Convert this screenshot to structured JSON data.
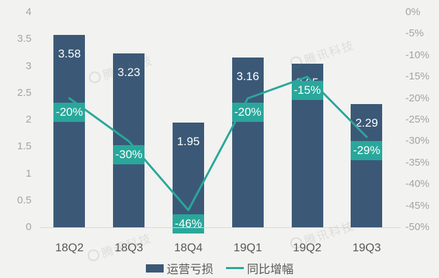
{
  "chart_data": {
    "type": "bar",
    "subtype": "bar-line-combo",
    "title": "",
    "categories": [
      "18Q2",
      "18Q3",
      "18Q4",
      "19Q1",
      "19Q2",
      "19Q3"
    ],
    "series": [
      {
        "name": "运营亏损",
        "type": "bar",
        "axis": "left",
        "values": [
          3.58,
          3.23,
          1.95,
          3.16,
          3.05,
          2.29
        ],
        "labels": [
          "3.58",
          "3.23",
          "1.95",
          "3.16",
          "3.05",
          "2.29"
        ],
        "color": "#3b5977"
      },
      {
        "name": "同比增幅",
        "type": "line",
        "axis": "right",
        "values": [
          -20,
          -30,
          -46,
          -20,
          -15,
          -29
        ],
        "labels": [
          "-20%",
          "-30%",
          "-46%",
          "-20%",
          "-15%",
          "-29%"
        ],
        "color": "#29a79b"
      }
    ],
    "left_axis": {
      "min": 0,
      "max": 4,
      "step": 0.5,
      "ticks": [
        "0",
        "0.5",
        "1",
        "1.5",
        "2",
        "2.5",
        "3",
        "3.5",
        "4"
      ]
    },
    "right_axis": {
      "min": -50,
      "max": 0,
      "step": -5,
      "ticks": [
        "0%",
        "-5%",
        "-10%",
        "-15%",
        "-20%",
        "-25%",
        "-30%",
        "-35%",
        "-40%",
        "-45%",
        "-50%"
      ]
    },
    "legend": [
      "运营亏损",
      "同比增幅"
    ],
    "grid": "off",
    "legend_position": "bottom-center"
  },
  "watermark": {
    "text": "腾讯科技"
  },
  "colors": {
    "background": "#f2f2f0",
    "bar": "#3b5977",
    "line": "#29a79b",
    "axis_text": "#a3a3a3",
    "category_text": "#595959",
    "baseline": "#d8d8d5",
    "value_text": "#ffffff"
  }
}
